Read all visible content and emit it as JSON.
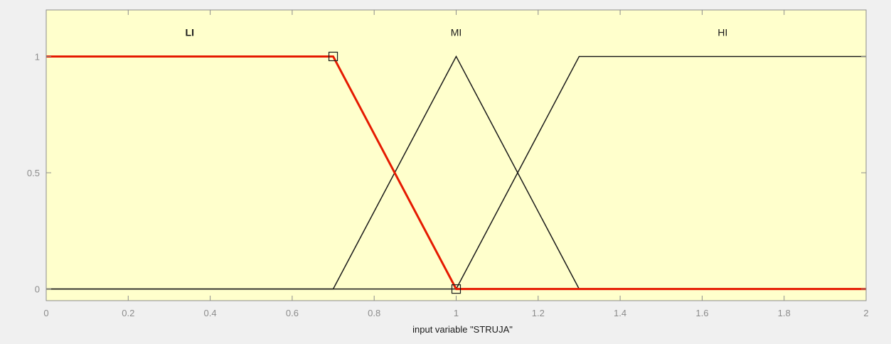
{
  "chart_data": {
    "type": "line",
    "title": "",
    "xlabel": "input variable \"STRUJA\"",
    "ylabel": "",
    "xlim": [
      0,
      2
    ],
    "ylim": [
      -0.05,
      1.2
    ],
    "x_ticks": [
      0,
      0.2,
      0.4,
      0.6,
      0.8,
      1,
      1.2,
      1.4,
      1.6,
      1.8,
      2
    ],
    "x_tick_labels": [
      "0",
      "0.2",
      "0.4",
      "0.6",
      "0.8",
      "1",
      "1.2",
      "1.4",
      "1.6",
      "1.8",
      "2"
    ],
    "y_ticks": [
      0,
      0.5,
      1
    ],
    "y_tick_labels": [
      "0",
      "0.5",
      "1"
    ],
    "grid": false,
    "background_color": "#ffffcc",
    "axis_color": "#8c8c8c",
    "series": [
      {
        "name": "LI",
        "color": "#e51a00",
        "selected": true,
        "label_x": 0.35,
        "label_y": 1.1,
        "x": [
          0,
          0.7,
          1.0,
          2.0
        ],
        "y": [
          1,
          1,
          0,
          0
        ],
        "markers": [
          [
            0.7,
            1
          ],
          [
            1.0,
            0
          ]
        ]
      },
      {
        "name": "MI",
        "color": "#1a1a1a",
        "selected": false,
        "label_x": 1.0,
        "label_y": 1.1,
        "x": [
          0,
          0.7,
          1.0,
          1.3,
          2.0
        ],
        "y": [
          0,
          0,
          1,
          0,
          0
        ]
      },
      {
        "name": "HI",
        "color": "#1a1a1a",
        "selected": false,
        "label_x": 1.65,
        "label_y": 1.1,
        "x": [
          0,
          0.7,
          1.0,
          1.3,
          2.0
        ],
        "y": [
          0,
          0,
          0,
          1,
          1
        ]
      }
    ]
  }
}
